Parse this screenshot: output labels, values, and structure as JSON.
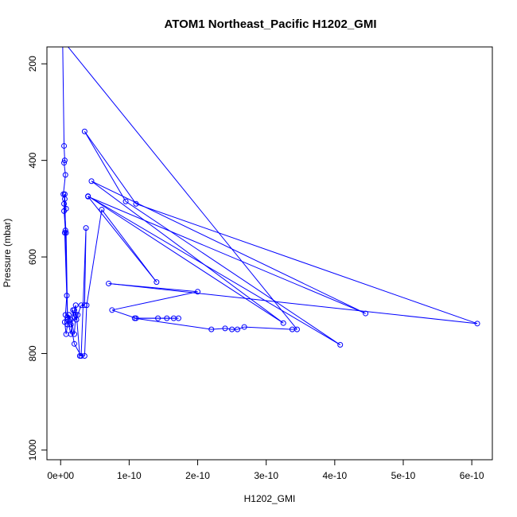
{
  "chart_data": {
    "type": "line",
    "title": "ATOM1 Northeast_Pacific H1202_GMI",
    "xlabel": "H1202_GMI",
    "ylabel": "Pressure (mbar)",
    "xlim": [
      -2e-11,
      6.3e-10
    ],
    "ylim": [
      1020,
      165
    ],
    "y_reversed": true,
    "x_ticks": [
      0,
      1e-10,
      2e-10,
      3e-10,
      4e-10,
      5e-10,
      6e-10
    ],
    "x_tick_labels": [
      "0e+00",
      "1e-10",
      "2e-10",
      "3e-10",
      "4e-10",
      "5e-10",
      "6e-10"
    ],
    "y_ticks": [
      200,
      400,
      600,
      800,
      1000
    ],
    "y_tick_labels": [
      "200",
      "400",
      "600",
      "800",
      "1000"
    ],
    "grid": false,
    "legend": "none",
    "color": "#0000ff",
    "series": [
      {
        "x": [
          3e-12,
          5e-12,
          6e-12,
          5e-12,
          7e-12,
          4e-12,
          6e-12,
          8e-12,
          5e-12,
          7e-12,
          6e-12,
          9e-12,
          7e-12,
          6e-12,
          8e-12,
          1e-11,
          1.2e-11,
          1.5e-11,
          2e-11,
          2.2e-11,
          2.5e-11,
          3e-11,
          3.5e-11,
          3.7e-11,
          3e-11,
          2e-11,
          1.5e-11,
          1.2e-11,
          1e-11,
          8e-12,
          5e-12,
          6e-12,
          1e-11,
          1.5e-11,
          1.8e-11,
          2e-11,
          2.3e-11,
          2e-11,
          2.2e-11,
          2.8e-11,
          3.5e-11,
          3.8e-11,
          6e-11,
          1.4e-10,
          4e-11,
          4.45e-10,
          4.5e-11,
          3.25e-10,
          4e-11,
          4.08e-10,
          9.5e-11,
          3.5e-11,
          1.1e-10,
          6.08e-10,
          7e-11,
          2e-10,
          7.5e-11,
          1.1e-10,
          1.42e-10,
          1.55e-10,
          1.65e-10,
          1.72e-10,
          1.08e-10,
          2.2e-10,
          2.4e-10,
          2.5e-10,
          2.58e-10,
          2.68e-10,
          3.38e-10,
          3.45e-10,
          8e-12,
          7e-12,
          6e-12,
          5e-12
        ],
        "y": [
          160,
          370,
          400,
          405,
          430,
          470,
          480,
          500,
          505,
          545,
          550,
          680,
          720,
          735,
          760,
          740,
          720,
          730,
          760,
          720,
          720,
          700,
          700,
          540,
          805,
          780,
          740,
          720,
          725,
          550,
          490,
          470,
          730,
          760,
          710,
          725,
          730,
          710,
          700,
          805,
          805,
          700,
          502,
          652,
          475,
          717,
          443,
          737,
          474,
          782,
          485,
          340,
          490,
          738,
          655,
          672,
          710,
          727,
          727,
          727,
          727,
          727,
          727,
          750,
          748,
          750,
          750,
          745,
          750,
          750,
          160,
          160,
          160,
          160
        ]
      }
    ]
  }
}
